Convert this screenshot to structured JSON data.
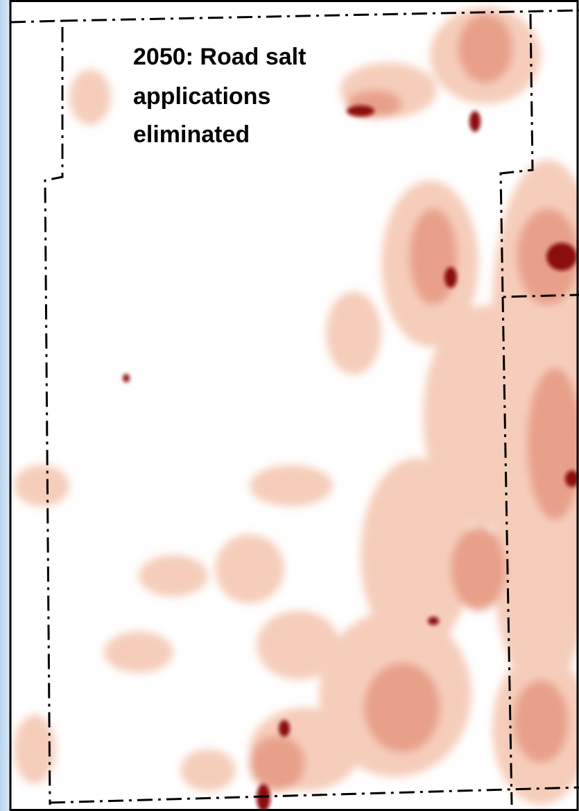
{
  "map": {
    "label": {
      "lines": [
        "2050: Road salt",
        "applications",
        "eliminated"
      ]
    }
  }
}
